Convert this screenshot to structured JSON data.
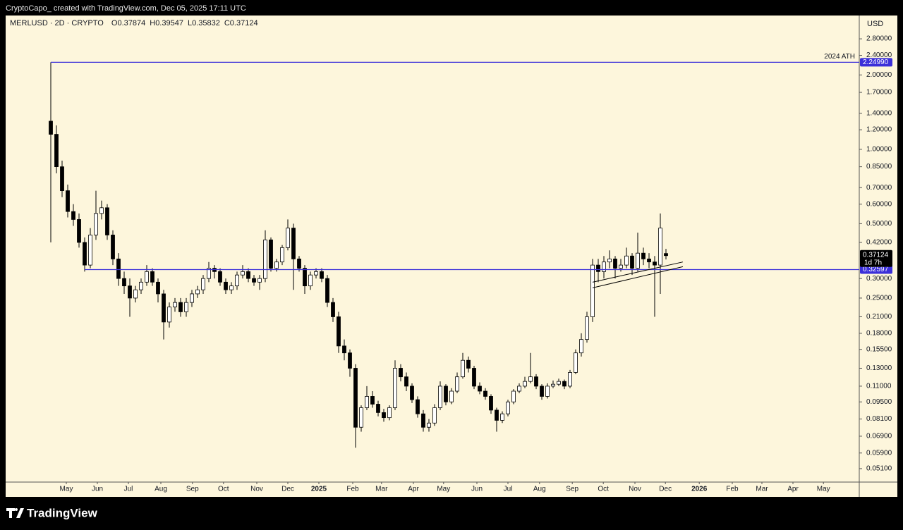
{
  "header": {
    "credit": "CryptoCapo_ created with TradingView.com, Dec 05, 2025 17:11 UTC"
  },
  "footer": {
    "brand": "TradingView"
  },
  "chart_data": {
    "type": "candlestick",
    "title": "MERLUSD · 2D · CRYPTO",
    "ohlc_labels": [
      "O",
      "H",
      "L",
      "C"
    ],
    "currency": "USD",
    "log_scale": true,
    "grid": false,
    "up_color": "#ffffff",
    "down_color": "#000000",
    "wick_color": "#000000",
    "background": "#fdf6dc",
    "countdown": "1d 7h",
    "ylim": [
      0.045,
      3.48
    ],
    "yticks": [
      {
        "value": 2.8,
        "label": "2.80000"
      },
      {
        "value": 2.4,
        "label": "2.40000"
      },
      {
        "value": 2.0,
        "label": "2.00000"
      },
      {
        "value": 1.7,
        "label": "1.70000"
      },
      {
        "value": 1.4,
        "label": "1.40000"
      },
      {
        "value": 1.2,
        "label": "1.20000"
      },
      {
        "value": 1.0,
        "label": "1.00000"
      },
      {
        "value": 0.85,
        "label": "0.85000"
      },
      {
        "value": 0.7,
        "label": "0.70000"
      },
      {
        "value": 0.6,
        "label": "0.60000"
      },
      {
        "value": 0.5,
        "label": "0.50000"
      },
      {
        "value": 0.42,
        "label": "0.42000"
      },
      {
        "value": 0.3,
        "label": "0.30000"
      },
      {
        "value": 0.25,
        "label": "0.25000"
      },
      {
        "value": 0.21,
        "label": "0.21000"
      },
      {
        "value": 0.18,
        "label": "0.18000"
      },
      {
        "value": 0.155,
        "label": "0.15500"
      },
      {
        "value": 0.13,
        "label": "0.13000"
      },
      {
        "value": 0.11,
        "label": "0.11000"
      },
      {
        "value": 0.095,
        "label": "0.09500"
      },
      {
        "value": 0.081,
        "label": "0.08100"
      },
      {
        "value": 0.069,
        "label": "0.06900"
      },
      {
        "value": 0.059,
        "label": "0.05900"
      },
      {
        "value": 0.051,
        "label": "0.05100"
      }
    ],
    "xlim": [
      -8,
      143.25
    ],
    "xticks": [
      {
        "value": 2.75,
        "label": "May"
      },
      {
        "value": 8.25,
        "label": "Jun"
      },
      {
        "value": 13.75,
        "label": "Jul"
      },
      {
        "value": 19.5,
        "label": "Aug"
      },
      {
        "value": 25.1,
        "label": "Sep"
      },
      {
        "value": 30.6,
        "label": "Oct"
      },
      {
        "value": 36.5,
        "label": "Nov"
      },
      {
        "value": 42,
        "label": "Dec"
      },
      {
        "value": 47.5,
        "label": "2025"
      },
      {
        "value": 53.5,
        "label": "Feb"
      },
      {
        "value": 58.6,
        "label": "Mar"
      },
      {
        "value": 64.25,
        "label": "Apr"
      },
      {
        "value": 69.6,
        "label": "May"
      },
      {
        "value": 75.5,
        "label": "Jun"
      },
      {
        "value": 81,
        "label": "Jul"
      },
      {
        "value": 86.6,
        "label": "Aug"
      },
      {
        "value": 92.4,
        "label": "Sep"
      },
      {
        "value": 97.9,
        "label": "Oct"
      },
      {
        "value": 103.5,
        "label": "Nov"
      },
      {
        "value": 108.9,
        "label": "Dec"
      },
      {
        "value": 114.9,
        "label": "2026"
      },
      {
        "value": 120.75,
        "label": "Feb"
      },
      {
        "value": 126,
        "label": "Mar"
      },
      {
        "value": 131.5,
        "label": "Apr"
      },
      {
        "value": 136.9,
        "label": "May"
      }
    ],
    "levels": [
      {
        "name": "2024 ATH",
        "value": 2.2499,
        "label": "2.24990",
        "from": 0,
        "color": "#3b2fd9"
      },
      {
        "value": 0.32597,
        "label": "0.32597",
        "from": 6,
        "color": "#3b2fd9"
      }
    ],
    "trendlines": [
      {
        "x": [
          96,
          112
        ],
        "values": [
          0.275,
          0.335
        ],
        "color": "#000000"
      },
      {
        "x": [
          96,
          112
        ],
        "values": [
          0.29,
          0.35
        ],
        "color": "#000000"
      }
    ],
    "categories": [
      null,
      null,
      null,
      null,
      null,
      null,
      null,
      null,
      null,
      null,
      null,
      null,
      null,
      null,
      null,
      null,
      null,
      null,
      null,
      null,
      null,
      null,
      null,
      null,
      null,
      null,
      null,
      null,
      null,
      null,
      null,
      null,
      null,
      null,
      null,
      null,
      null,
      null,
      null,
      null,
      null,
      null,
      null,
      null,
      null,
      null,
      null,
      null,
      null,
      null,
      null,
      null,
      null,
      null,
      null,
      null,
      null,
      null,
      null,
      null,
      null,
      null,
      null,
      null,
      null,
      null,
      null,
      null,
      null,
      null,
      null,
      null,
      null,
      null,
      null,
      null,
      null,
      null,
      null,
      null,
      null,
      null,
      null,
      null,
      null,
      null,
      null,
      null,
      null,
      null,
      null,
      null,
      null,
      null,
      null,
      null,
      null,
      null,
      null,
      null,
      null,
      null,
      null,
      null,
      null,
      null,
      null,
      null,
      null,
      null
    ],
    "values": [
      [
        1.3,
        2.2499,
        0.42,
        1.15
      ],
      [
        1.15,
        1.25,
        0.8,
        0.85
      ],
      [
        0.85,
        0.9,
        0.64,
        0.68
      ],
      [
        0.68,
        0.72,
        0.53,
        0.56
      ],
      [
        0.56,
        0.6,
        0.49,
        0.52
      ],
      [
        0.52,
        0.55,
        0.4,
        0.42
      ],
      [
        0.42,
        0.44,
        0.32,
        0.34
      ],
      [
        0.34,
        0.48,
        0.33,
        0.45
      ],
      [
        0.45,
        0.68,
        0.43,
        0.55
      ],
      [
        0.55,
        0.62,
        0.52,
        0.58
      ],
      [
        0.58,
        0.6,
        0.43,
        0.45
      ],
      [
        0.45,
        0.47,
        0.34,
        0.36
      ],
      [
        0.36,
        0.38,
        0.28,
        0.3
      ],
      [
        0.3,
        0.32,
        0.26,
        0.28
      ],
      [
        0.28,
        0.3,
        0.21,
        0.25
      ],
      [
        0.25,
        0.28,
        0.24,
        0.27
      ],
      [
        0.27,
        0.3,
        0.26,
        0.29
      ],
      [
        0.29,
        0.34,
        0.28,
        0.32
      ],
      [
        0.32,
        0.33,
        0.28,
        0.29
      ],
      [
        0.29,
        0.3,
        0.24,
        0.26
      ],
      [
        0.26,
        0.27,
        0.17,
        0.2
      ],
      [
        0.2,
        0.24,
        0.19,
        0.23
      ],
      [
        0.23,
        0.25,
        0.22,
        0.24
      ],
      [
        0.24,
        0.25,
        0.21,
        0.22
      ],
      [
        0.22,
        0.25,
        0.21,
        0.24
      ],
      [
        0.24,
        0.27,
        0.23,
        0.26
      ],
      [
        0.26,
        0.28,
        0.25,
        0.27
      ],
      [
        0.27,
        0.31,
        0.26,
        0.3
      ],
      [
        0.3,
        0.35,
        0.29,
        0.33
      ],
      [
        0.33,
        0.34,
        0.3,
        0.32
      ],
      [
        0.32,
        0.33,
        0.28,
        0.29
      ],
      [
        0.29,
        0.3,
        0.26,
        0.27
      ],
      [
        0.27,
        0.29,
        0.26,
        0.28
      ],
      [
        0.28,
        0.32,
        0.27,
        0.31
      ],
      [
        0.31,
        0.34,
        0.3,
        0.32
      ],
      [
        0.32,
        0.33,
        0.29,
        0.3
      ],
      [
        0.3,
        0.31,
        0.28,
        0.29
      ],
      [
        0.29,
        0.31,
        0.27,
        0.3
      ],
      [
        0.3,
        0.47,
        0.29,
        0.43
      ],
      [
        0.43,
        0.44,
        0.32,
        0.33
      ],
      [
        0.33,
        0.36,
        0.32,
        0.35
      ],
      [
        0.35,
        0.41,
        0.34,
        0.4
      ],
      [
        0.4,
        0.52,
        0.39,
        0.48
      ],
      [
        0.48,
        0.5,
        0.27,
        0.36
      ],
      [
        0.36,
        0.37,
        0.32,
        0.33
      ],
      [
        0.33,
        0.34,
        0.26,
        0.28
      ],
      [
        0.28,
        0.32,
        0.27,
        0.31
      ],
      [
        0.31,
        0.33,
        0.3,
        0.32
      ],
      [
        0.32,
        0.33,
        0.29,
        0.3
      ],
      [
        0.3,
        0.31,
        0.23,
        0.24
      ],
      [
        0.24,
        0.25,
        0.2,
        0.21
      ],
      [
        0.21,
        0.22,
        0.15,
        0.16
      ],
      [
        0.16,
        0.17,
        0.14,
        0.15
      ],
      [
        0.15,
        0.155,
        0.12,
        0.13
      ],
      [
        0.13,
        0.135,
        0.062,
        0.075
      ],
      [
        0.075,
        0.092,
        0.072,
        0.09
      ],
      [
        0.09,
        0.11,
        0.088,
        0.1
      ],
      [
        0.1,
        0.105,
        0.09,
        0.093
      ],
      [
        0.093,
        0.096,
        0.083,
        0.086
      ],
      [
        0.086,
        0.089,
        0.079,
        0.082
      ],
      [
        0.082,
        0.092,
        0.08,
        0.09
      ],
      [
        0.09,
        0.14,
        0.088,
        0.13
      ],
      [
        0.13,
        0.135,
        0.115,
        0.12
      ],
      [
        0.12,
        0.125,
        0.105,
        0.11
      ],
      [
        0.11,
        0.113,
        0.094,
        0.097
      ],
      [
        0.097,
        0.1,
        0.082,
        0.085
      ],
      [
        0.085,
        0.088,
        0.072,
        0.075
      ],
      [
        0.075,
        0.081,
        0.072,
        0.078
      ],
      [
        0.078,
        0.093,
        0.076,
        0.09
      ],
      [
        0.09,
        0.115,
        0.088,
        0.11
      ],
      [
        0.11,
        0.112,
        0.092,
        0.095
      ],
      [
        0.095,
        0.108,
        0.093,
        0.105
      ],
      [
        0.105,
        0.125,
        0.103,
        0.12
      ],
      [
        0.12,
        0.15,
        0.118,
        0.14
      ],
      [
        0.14,
        0.145,
        0.125,
        0.13
      ],
      [
        0.13,
        0.133,
        0.107,
        0.11
      ],
      [
        0.11,
        0.114,
        0.102,
        0.105
      ],
      [
        0.105,
        0.108,
        0.097,
        0.1
      ],
      [
        0.1,
        0.102,
        0.085,
        0.088
      ],
      [
        0.088,
        0.09,
        0.072,
        0.08
      ],
      [
        0.08,
        0.087,
        0.078,
        0.085
      ],
      [
        0.085,
        0.097,
        0.083,
        0.095
      ],
      [
        0.095,
        0.107,
        0.093,
        0.105
      ],
      [
        0.105,
        0.113,
        0.103,
        0.11
      ],
      [
        0.11,
        0.12,
        0.108,
        0.115
      ],
      [
        0.115,
        0.15,
        0.113,
        0.12
      ],
      [
        0.12,
        0.123,
        0.107,
        0.11
      ],
      [
        0.11,
        0.112,
        0.097,
        0.1
      ],
      [
        0.1,
        0.113,
        0.098,
        0.11
      ],
      [
        0.11,
        0.116,
        0.108,
        0.112
      ],
      [
        0.112,
        0.118,
        0.11,
        0.115
      ],
      [
        0.115,
        0.117,
        0.107,
        0.11
      ],
      [
        0.11,
        0.128,
        0.108,
        0.125
      ],
      [
        0.125,
        0.155,
        0.123,
        0.15
      ],
      [
        0.15,
        0.18,
        0.145,
        0.17
      ],
      [
        0.17,
        0.22,
        0.165,
        0.21
      ],
      [
        0.21,
        0.36,
        0.2,
        0.34
      ],
      [
        0.34,
        0.36,
        0.29,
        0.32
      ],
      [
        0.32,
        0.37,
        0.3,
        0.35
      ],
      [
        0.35,
        0.39,
        0.33,
        0.36
      ],
      [
        0.36,
        0.37,
        0.3,
        0.33
      ],
      [
        0.33,
        0.36,
        0.32,
        0.34
      ],
      [
        0.34,
        0.4,
        0.33,
        0.37
      ],
      [
        0.37,
        0.38,
        0.31,
        0.33
      ],
      [
        0.33,
        0.46,
        0.32,
        0.38
      ],
      [
        0.38,
        0.4,
        0.34,
        0.36
      ],
      [
        0.36,
        0.38,
        0.33,
        0.35
      ],
      [
        0.35,
        0.37,
        0.21,
        0.34
      ],
      [
        0.34,
        0.55,
        0.26,
        0.48
      ],
      [
        0.37874,
        0.39547,
        0.35832,
        0.37124
      ]
    ]
  }
}
